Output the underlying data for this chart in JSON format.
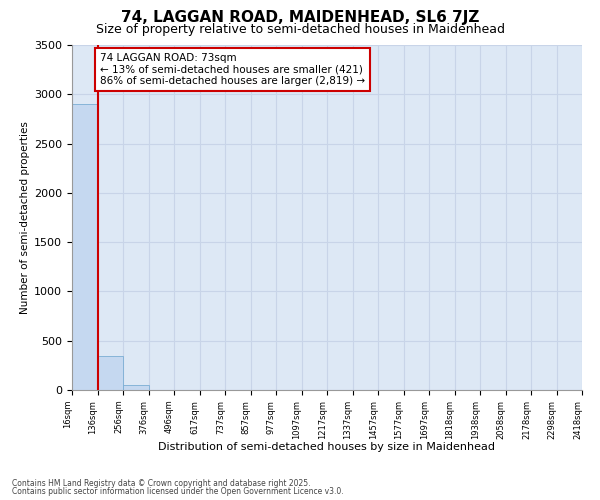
{
  "title": "74, LAGGAN ROAD, MAIDENHEAD, SL6 7JZ",
  "subtitle": "Size of property relative to semi-detached houses in Maidenhead",
  "xlabel": "Distribution of semi-detached houses by size in Maidenhead",
  "ylabel": "Number of semi-detached properties",
  "bar_values": [
    2900,
    350,
    50,
    0,
    0,
    0,
    0,
    0,
    0,
    0,
    0,
    0,
    0,
    0,
    0,
    0,
    0,
    0,
    0,
    0
  ],
  "bar_color": "#c5d8f0",
  "bar_edge_color": "#7aadd4",
  "x_labels": [
    "16sqm",
    "136sqm",
    "256sqm",
    "376sqm",
    "496sqm",
    "617sqm",
    "737sqm",
    "857sqm",
    "977sqm",
    "1097sqm",
    "1217sqm",
    "1337sqm",
    "1457sqm",
    "1577sqm",
    "1697sqm",
    "1818sqm",
    "1938sqm",
    "2058sqm",
    "2178sqm",
    "2298sqm",
    "2418sqm"
  ],
  "ylim": [
    0,
    3500
  ],
  "yticks": [
    0,
    500,
    1000,
    1500,
    2000,
    2500,
    3000,
    3500
  ],
  "annotation_title": "74 LAGGAN ROAD: 73sqm",
  "annotation_line1": "← 13% of semi-detached houses are smaller (421)",
  "annotation_line2": "86% of semi-detached houses are larger (2,819) →",
  "annotation_box_color": "#ffffff",
  "annotation_box_edge": "#cc0000",
  "red_line_color": "#cc0000",
  "grid_color": "#c8d4e8",
  "bg_color": "#dde8f5",
  "footnote1": "Contains HM Land Registry data © Crown copyright and database right 2025.",
  "footnote2": "Contains public sector information licensed under the Open Government Licence v3.0."
}
